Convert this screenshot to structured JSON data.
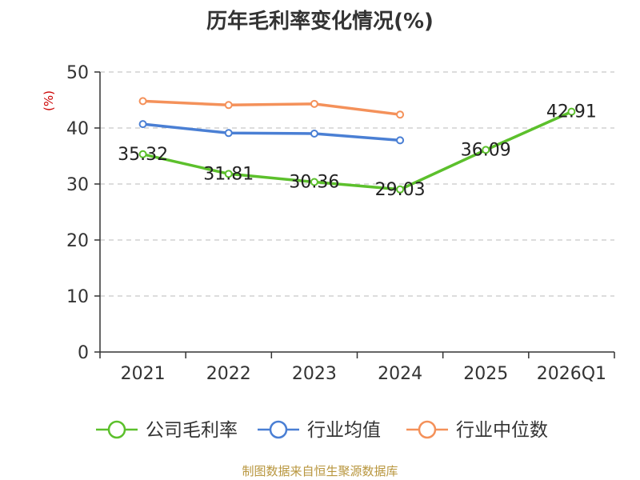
{
  "title": "历年毛利率变化情况(%)",
  "source": "制图数据来自恒生聚源数据库",
  "chart_data": {
    "type": "line",
    "title": "历年毛利率变化情况(%)",
    "ylabel": "(%)",
    "ylim": [
      0,
      50
    ],
    "yticks": [
      0,
      10,
      20,
      30,
      40,
      50
    ],
    "grid": true,
    "legend_position": "bottom",
    "categories": [
      "2021",
      "2022",
      "2023",
      "2024",
      "2025",
      "2026Q1"
    ],
    "series": [
      {
        "name": "公司毛利率",
        "color": "#5cc02c",
        "values": [
          35.32,
          31.81,
          30.36,
          29.03,
          36.09,
          42.91
        ],
        "show_labels": true
      },
      {
        "name": "行业均值",
        "color": "#4a7fd4",
        "values": [
          40.7,
          39.1,
          39.0,
          37.8,
          null,
          null
        ],
        "show_labels": false
      },
      {
        "name": "行业中位数",
        "color": "#f4915a",
        "values": [
          44.8,
          44.1,
          44.3,
          42.4,
          null,
          null
        ],
        "show_labels": false
      }
    ]
  }
}
